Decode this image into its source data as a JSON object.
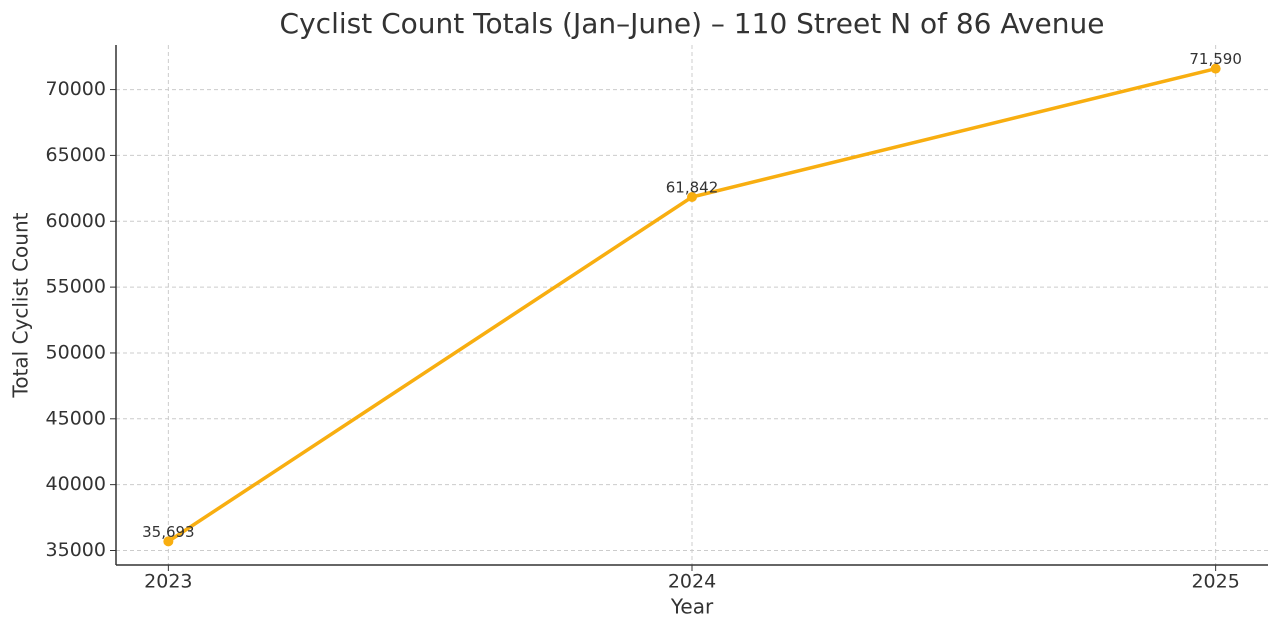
{
  "chart_data": {
    "type": "line",
    "title": "Cyclist Count Totals (Jan–June) – 110 Street N of 86 Avenue",
    "x_label": "Year",
    "y_label": "Total Cyclist Count",
    "x": [
      2023,
      2024,
      2025
    ],
    "values": [
      35693,
      61842,
      71590
    ],
    "value_labels": [
      "35,693",
      "61,842",
      "71,590"
    ],
    "color": "#f8ae10",
    "xlim": [
      2022.9,
      2025.1
    ],
    "xticks": [
      2023,
      2024,
      2025
    ],
    "ylim": [
      33898,
      73385
    ],
    "yticks": [
      35000,
      40000,
      45000,
      50000,
      55000,
      60000,
      65000,
      70000
    ],
    "grid": true
  }
}
